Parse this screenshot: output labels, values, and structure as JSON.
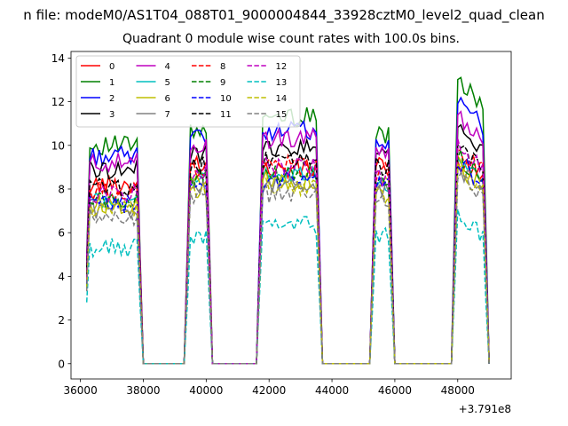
{
  "suptitle": "n file: modeM0/AS1T04_088T01_9000004844_33928cztM0_level2_quad_clean",
  "chart_data": {
    "type": "line",
    "title": "Quadrant 0 module wise count rates with 100.0s bins.",
    "xlabel": "",
    "ylabel": "",
    "offset_label": "+3.791e8",
    "xlim": [
      35700,
      49700
    ],
    "ylim": [
      -0.7,
      14.3
    ],
    "xticks": [
      36000,
      38000,
      40000,
      42000,
      44000,
      46000,
      48000
    ],
    "xtick_labels": [
      "36000",
      "38000",
      "40000",
      "42000",
      "44000",
      "46000",
      "48000"
    ],
    "yticks": [
      0,
      2,
      4,
      6,
      8,
      10,
      12,
      14
    ],
    "ytick_labels": [
      "0",
      "2",
      "4",
      "6",
      "8",
      "10",
      "12",
      "14"
    ],
    "grid": false,
    "legend": {
      "loc": "upper-left",
      "ncol": 4
    },
    "segments": [
      {
        "start": 36200,
        "n": 18
      },
      {
        "start": 39400,
        "n": 8
      },
      {
        "start": 41700,
        "n": 20
      },
      {
        "start": 45300,
        "n": 7
      },
      {
        "start": 47900,
        "n": 11
      }
    ],
    "series": [
      {
        "name": "0",
        "color": "#ff0000",
        "dash": "solid",
        "levels": [
          8.2,
          9.2,
          8.9,
          9.0,
          9.4
        ]
      },
      {
        "name": "1",
        "color": "#008000",
        "dash": "solid",
        "levels": [
          10.0,
          10.8,
          11.3,
          10.5,
          13.0
        ]
      },
      {
        "name": "2",
        "color": "#0000ff",
        "dash": "solid",
        "levels": [
          9.5,
          10.3,
          10.7,
          10.3,
          12.0
        ]
      },
      {
        "name": "3",
        "color": "#000000",
        "dash": "solid",
        "levels": [
          8.9,
          9.6,
          9.9,
          9.6,
          11.0
        ]
      },
      {
        "name": "4",
        "color": "#bf00bf",
        "dash": "solid",
        "levels": [
          9.2,
          10.0,
          10.3,
          9.8,
          11.4
        ]
      },
      {
        "name": "5",
        "color": "#00bfbf",
        "dash": "solid",
        "levels": [
          7.4,
          8.3,
          8.6,
          8.3,
          9.5
        ]
      },
      {
        "name": "6",
        "color": "#bfbf00",
        "dash": "solid",
        "levels": [
          7.3,
          8.2,
          8.4,
          8.1,
          9.2
        ]
      },
      {
        "name": "7",
        "color": "#808080",
        "dash": "solid",
        "levels": [
          7.1,
          8.0,
          8.2,
          7.9,
          9.0
        ]
      },
      {
        "name": "8",
        "color": "#ff0000",
        "dash": "dashed",
        "levels": [
          7.9,
          8.9,
          9.1,
          8.8,
          9.9
        ]
      },
      {
        "name": "9",
        "color": "#008000",
        "dash": "dashed",
        "levels": [
          7.5,
          8.5,
          8.7,
          8.4,
          9.6
        ]
      },
      {
        "name": "10",
        "color": "#0000ff",
        "dash": "dashed",
        "levels": [
          7.3,
          8.2,
          8.4,
          8.1,
          9.4
        ]
      },
      {
        "name": "11",
        "color": "#000000",
        "dash": "dashed",
        "levels": [
          8.1,
          9.1,
          9.3,
          9.0,
          10.2
        ]
      },
      {
        "name": "12",
        "color": "#bf00bf",
        "dash": "dashed",
        "levels": [
          7.8,
          8.7,
          9.0,
          8.6,
          10.0
        ]
      },
      {
        "name": "13",
        "color": "#00bfbf",
        "dash": "dashed",
        "levels": [
          5.3,
          5.8,
          6.3,
          5.9,
          6.9
        ]
      },
      {
        "name": "14",
        "color": "#bfbf00",
        "dash": "dashed",
        "levels": [
          7.0,
          7.9,
          8.1,
          7.8,
          9.0
        ]
      },
      {
        "name": "15",
        "color": "#808080",
        "dash": "dashed",
        "levels": [
          6.7,
          7.6,
          7.8,
          7.5,
          8.6
        ]
      }
    ]
  }
}
